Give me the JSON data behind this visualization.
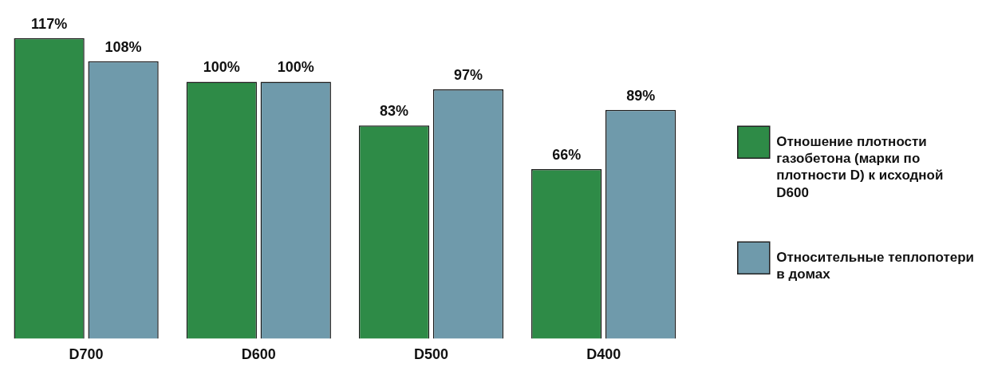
{
  "chart_data": {
    "type": "bar",
    "categories": [
      "D700",
      "D600",
      "D500",
      "D400"
    ],
    "series": [
      {
        "name": "Отношение плотности газобетона (марки по плотности D) к исходной D600",
        "color": "#2e8b47",
        "values": [
          117,
          100,
          83,
          66
        ],
        "value_labels": [
          "117%",
          "100%",
          "83%",
          "66%"
        ]
      },
      {
        "name": "Относительные теплопотери в домах",
        "color": "#6f9aab",
        "values": [
          108,
          100,
          97,
          89
        ],
        "value_labels": [
          "108%",
          "100%",
          "97%",
          "89%"
        ]
      }
    ],
    "legend": "right",
    "grid": false
  }
}
